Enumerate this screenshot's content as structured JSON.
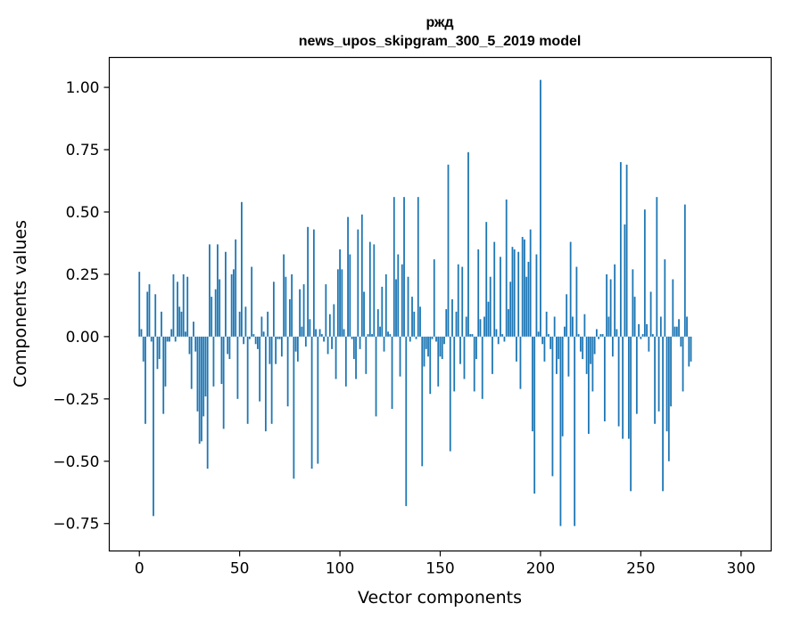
{
  "chart_data": {
    "type": "bar",
    "title": "ржд",
    "subtitle": "news_upos_skipgram_300_5_2019 model",
    "xlabel": "Vector components",
    "ylabel": "Components values",
    "xlim": [
      -15,
      315
    ],
    "ylim": [
      -0.86,
      1.12
    ],
    "xticks": [
      0,
      50,
      100,
      150,
      200,
      250,
      300
    ],
    "yticks": [
      -0.75,
      -0.5,
      -0.25,
      0.0,
      0.25,
      0.5,
      0.75,
      1.0
    ],
    "xtick_labels": [
      "0",
      "50",
      "100",
      "150",
      "200",
      "250",
      "300"
    ],
    "ytick_labels": [
      "−0.75",
      "−0.50",
      "−0.25",
      "0.00",
      "0.25",
      "0.50",
      "0.75",
      "1.00"
    ],
    "bar_color": "#1f77b4",
    "values": [
      0.26,
      0.03,
      -0.1,
      -0.35,
      0.18,
      0.21,
      -0.02,
      -0.72,
      0.17,
      -0.13,
      -0.09,
      0.1,
      -0.31,
      -0.2,
      -0.02,
      -0.02,
      0.03,
      0.25,
      -0.02,
      0.22,
      0.12,
      0.1,
      0.25,
      0.02,
      0.24,
      -0.07,
      -0.21,
      0.06,
      -0.06,
      -0.3,
      -0.43,
      -0.42,
      -0.32,
      -0.24,
      -0.53,
      0.37,
      0.16,
      -0.2,
      0.19,
      0.37,
      0.23,
      -0.19,
      -0.37,
      0.34,
      -0.07,
      -0.09,
      0.25,
      0.27,
      0.39,
      -0.25,
      0.1,
      0.54,
      -0.03,
      0.12,
      -0.35,
      -0.01,
      0.28,
      0.01,
      -0.03,
      -0.05,
      -0.26,
      0.08,
      0.02,
      -0.38,
      0.1,
      -0.11,
      -0.35,
      0.22,
      -0.11,
      -0.01,
      -0.01,
      -0.08,
      0.33,
      0.24,
      -0.28,
      0.15,
      0.25,
      -0.57,
      -0.06,
      -0.1,
      0.19,
      0.04,
      0.21,
      -0.04,
      0.44,
      0.07,
      -0.53,
      0.43,
      0.03,
      -0.51,
      0.03,
      0.01,
      -0.02,
      0.21,
      -0.07,
      0.09,
      -0.05,
      0.13,
      -0.17,
      0.27,
      0.35,
      0.27,
      0.03,
      -0.2,
      0.48,
      0.33,
      -0.01,
      -0.09,
      -0.17,
      0.43,
      -0.05,
      0.49,
      0.18,
      -0.15,
      0.01,
      0.38,
      0.01,
      0.37,
      -0.32,
      0.11,
      0.04,
      0.2,
      -0.06,
      0.25,
      0.02,
      0.01,
      -0.29,
      0.56,
      0.23,
      0.33,
      -0.16,
      0.29,
      0.56,
      -0.68,
      0.24,
      -0.02,
      0.16,
      0.1,
      -0.01,
      0.56,
      0.12,
      -0.52,
      -0.12,
      -0.05,
      -0.08,
      -0.23,
      -0.01,
      0.31,
      -0.02,
      -0.2,
      -0.08,
      -0.09,
      -0.03,
      0.11,
      0.69,
      -0.46,
      0.15,
      -0.22,
      0.1,
      0.29,
      -0.11,
      0.28,
      -0.17,
      0.08,
      0.74,
      0.01,
      0.01,
      -0.22,
      -0.09,
      0.35,
      0.07,
      -0.25,
      0.08,
      0.46,
      0.14,
      0.24,
      -0.15,
      0.38,
      0.03,
      -0.03,
      0.32,
      0.01,
      -0.02,
      0.55,
      0.11,
      0.22,
      0.36,
      0.35,
      -0.1,
      0.34,
      -0.21,
      0.4,
      0.39,
      0.24,
      0.3,
      0.43,
      -0.38,
      -0.63,
      0.33,
      0.02,
      1.03,
      -0.03,
      -0.1,
      0.1,
      0.01,
      -0.05,
      -0.56,
      0.08,
      -0.15,
      -0.09,
      -0.76,
      -0.4,
      0.04,
      0.17,
      -0.16,
      0.38,
      0.08,
      -0.76,
      0.28,
      0.01,
      -0.06,
      -0.09,
      0.09,
      -0.15,
      -0.39,
      -0.11,
      -0.22,
      -0.07,
      0.03,
      -0.01,
      0.01,
      0.01,
      -0.34,
      0.25,
      0.08,
      0.23,
      -0.08,
      0.29,
      0.03,
      -0.36,
      0.7,
      -0.41,
      0.45,
      0.69,
      -0.41,
      -0.62,
      0.27,
      0.16,
      -0.31,
      0.05,
      -0.01,
      0.01,
      0.51,
      0.05,
      -0.06,
      0.18,
      0.01,
      -0.35,
      0.56,
      -0.3,
      0.08,
      -0.62,
      0.31,
      -0.38,
      -0.5,
      -0.28,
      0.23,
      0.04,
      0.04,
      0.07,
      -0.04,
      -0.22,
      0.53,
      0.08,
      -0.12,
      -0.1
    ]
  }
}
